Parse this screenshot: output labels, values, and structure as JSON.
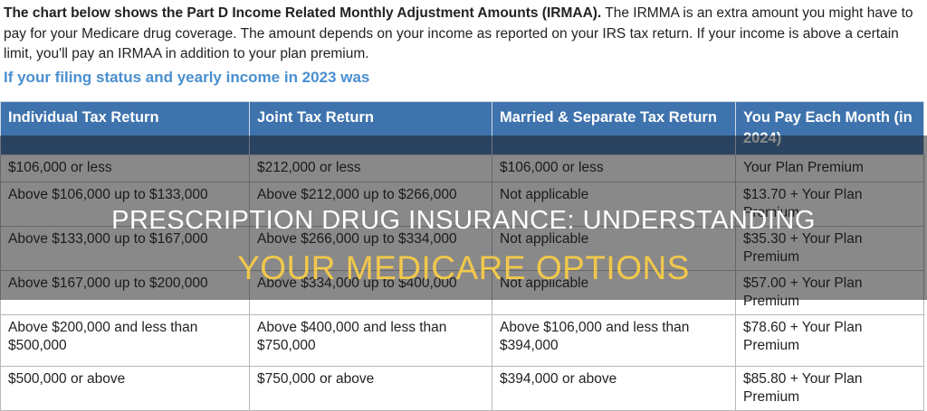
{
  "intro": {
    "lead": "The chart below shows the Part D Income Related Monthly Adjustment Amounts (IRMAA).",
    "text": " The IRMMA is an extra amount you might have to pay for your Medicare drug coverage. The amount depends on your income as reported on your IRS tax return. If your income is above a certain limit, you'll pay an IRMAA in addition to your plan premium."
  },
  "subheading": "If your filing status and yearly income in 2023 was",
  "table": {
    "headers": [
      "Individual Tax Return",
      "Joint Tax Return",
      "Married & Separate Tax Return",
      "You Pay Each Month (in 2024)"
    ],
    "rows": [
      [
        "$106,000 or less",
        "$212,000 or less",
        "$106,000 or less",
        "Your Plan Premium"
      ],
      [
        "Above $106,000 up to $133,000",
        "Above $212,000 up to $266,000",
        "Not applicable",
        "$13.70 + Your Plan Premium"
      ],
      [
        "Above $133,000 up to $167,000",
        "Above $266,000 up to $334,000",
        "Not applicable",
        "$35.30 + Your Plan Premium"
      ],
      [
        "Above $167,000 up to $200,000",
        "Above $334,000 up to $400,000",
        "Not applicable",
        "$57.00 + Your Plan Premium"
      ],
      [
        "Above $200,000 and less than $500,000",
        "Above $400,000 and less than $750,000",
        "Above $106,000 and less than $394,000",
        "$78.60 + Your Plan Premium"
      ],
      [
        "$500,000 or above",
        "$750,000 or above",
        "$394,000 or above",
        "$85.80 + Your Plan Premium"
      ]
    ]
  },
  "overlay": {
    "line1": "PRESCRIPTION DRUG INSURANCE: UNDERSTANDING",
    "line2": "YOUR MEDICARE OPTIONS"
  }
}
